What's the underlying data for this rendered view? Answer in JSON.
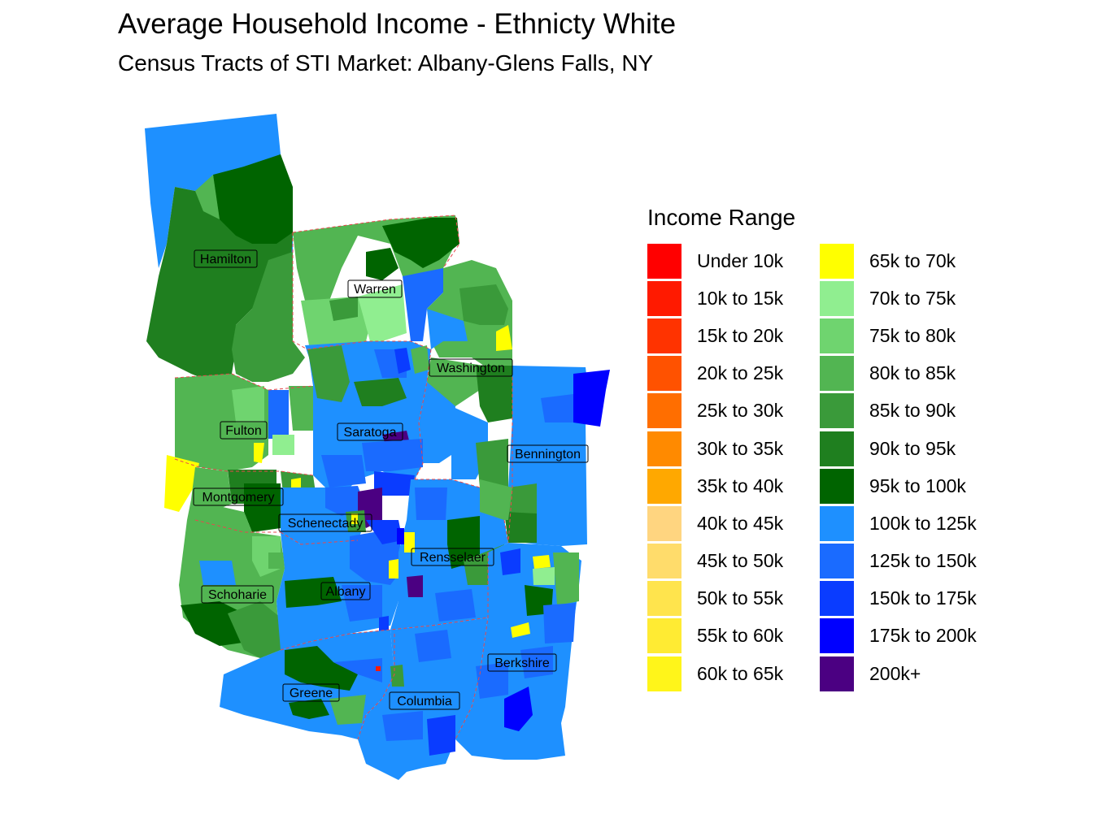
{
  "title": "Average Household Income - Ethnicty White",
  "subtitle": "Census Tracts of STI Market: Albany-Glens Falls, NY",
  "legend": {
    "title": "Income Range",
    "items": [
      {
        "label": "Under 10k",
        "color": "#FF0000"
      },
      {
        "label": "10k to 15k",
        "color": "#FF1A00"
      },
      {
        "label": "15k to 20k",
        "color": "#FF3300"
      },
      {
        "label": "20k to 25k",
        "color": "#FF5200"
      },
      {
        "label": "25k to 30k",
        "color": "#FF6E00"
      },
      {
        "label": "30k to 35k",
        "color": "#FF8A00"
      },
      {
        "label": "35k to 40k",
        "color": "#FFA800"
      },
      {
        "label": "40k to 45k",
        "color": "#FFD580"
      },
      {
        "label": "45k to 50k",
        "color": "#FFDC6B"
      },
      {
        "label": "50k to 55k",
        "color": "#FFE44D"
      },
      {
        "label": "55k to 60k",
        "color": "#FFEB33"
      },
      {
        "label": "60k to 65k",
        "color": "#FFF51A"
      },
      {
        "label": "65k to 70k",
        "color": "#FFFF00"
      },
      {
        "label": "70k to 75k",
        "color": "#90EE90"
      },
      {
        "label": "75k to 80k",
        "color": "#6FD46F"
      },
      {
        "label": "80k to 85k",
        "color": "#52B552"
      },
      {
        "label": "85k to 90k",
        "color": "#3A9A3A"
      },
      {
        "label": "90k to 95k",
        "color": "#1F7F1F"
      },
      {
        "label": "95k to 100k",
        "color": "#006400"
      },
      {
        "label": "100k to 125k",
        "color": "#1E90FF"
      },
      {
        "label": "125k to 150k",
        "color": "#1A6BFF"
      },
      {
        "label": "150k to 175k",
        "color": "#0A3CFF"
      },
      {
        "label": "175k to 200k",
        "color": "#0000FF"
      },
      {
        "label": "200k+",
        "color": "#4B0082"
      }
    ]
  },
  "counties": [
    {
      "name": "Hamilton"
    },
    {
      "name": "Warren"
    },
    {
      "name": "Washington"
    },
    {
      "name": "Fulton"
    },
    {
      "name": "Saratoga"
    },
    {
      "name": "Bennington"
    },
    {
      "name": "Montgomery"
    },
    {
      "name": "Schenectady"
    },
    {
      "name": "Rensselaer"
    },
    {
      "name": "Schoharie"
    },
    {
      "name": "Albany"
    },
    {
      "name": "Berkshire"
    },
    {
      "name": "Greene"
    },
    {
      "name": "Columbia"
    }
  ]
}
